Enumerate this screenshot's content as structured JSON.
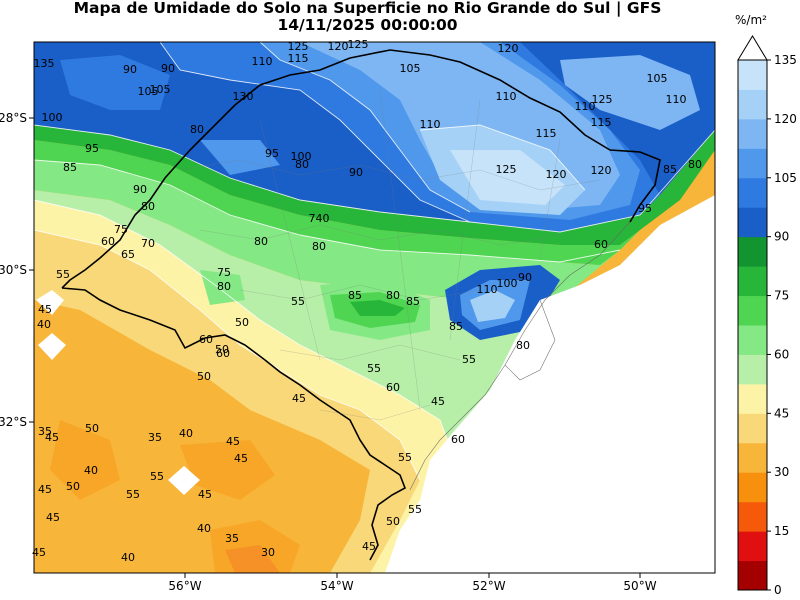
{
  "title": {
    "line1": "Mapa de Umidade do Solo na Superficie no Rio Grande do Sul | GFS",
    "line2": "14/11/2025 00:00:00"
  },
  "map": {
    "lon_ticks": [
      "56°W",
      "54°W",
      "52°W",
      "50°W"
    ],
    "lat_ticks": [
      "28°S",
      "30°S",
      "32°S"
    ]
  },
  "colorbar": {
    "unit": "%/m²",
    "tick_labels": [
      "0",
      "15",
      "30",
      "45",
      "60",
      "75",
      "90",
      "105",
      "120",
      "135"
    ],
    "levels": [
      {
        "color": "#a50000"
      },
      {
        "color": "#e01010"
      },
      {
        "color": "#f55a0a"
      },
      {
        "color": "#f7900c"
      },
      {
        "color": "#f7b53a"
      },
      {
        "color": "#f9d879"
      },
      {
        "color": "#fdf3a6"
      },
      {
        "color": "#b7efa8"
      },
      {
        "color": "#84e884"
      },
      {
        "color": "#4fd552"
      },
      {
        "color": "#27b63a"
      },
      {
        "color": "#129431"
      },
      {
        "color": "#1a5ec7"
      },
      {
        "color": "#2f7ae0"
      },
      {
        "color": "#4f98ec"
      },
      {
        "color": "#7db6f3"
      },
      {
        "color": "#a6d1f7"
      },
      {
        "color": "#c6e3f9"
      }
    ]
  },
  "contour_labels": [
    {
      "text": "125"
    },
    {
      "text": "120"
    },
    {
      "text": "125"
    },
    {
      "text": "120"
    },
    {
      "text": "110"
    },
    {
      "text": "115"
    },
    {
      "text": "105"
    },
    {
      "text": "110"
    },
    {
      "text": "115"
    },
    {
      "text": "125"
    },
    {
      "text": "120"
    },
    {
      "text": "120"
    },
    {
      "text": "125"
    },
    {
      "text": "115"
    },
    {
      "text": "110"
    },
    {
      "text": "105"
    },
    {
      "text": "110"
    },
    {
      "text": "130"
    },
    {
      "text": "135"
    },
    {
      "text": "90"
    },
    {
      "text": "90"
    },
    {
      "text": "105"
    },
    {
      "text": "100"
    },
    {
      "text": "95"
    },
    {
      "text": "85"
    },
    {
      "text": "90"
    },
    {
      "text": "80"
    },
    {
      "text": "80"
    },
    {
      "text": "95"
    },
    {
      "text": "100"
    },
    {
      "text": "90"
    },
    {
      "text": "80"
    },
    {
      "text": "75"
    },
    {
      "text": "70"
    },
    {
      "text": "60"
    },
    {
      "text": "65"
    },
    {
      "text": "80"
    },
    {
      "text": "740"
    },
    {
      "text": "80"
    },
    {
      "text": "75"
    },
    {
      "text": "80"
    },
    {
      "text": "55"
    },
    {
      "text": "85"
    },
    {
      "text": "80"
    },
    {
      "text": "85"
    },
    {
      "text": "110"
    },
    {
      "text": "100"
    },
    {
      "text": "90"
    },
    {
      "text": "85"
    },
    {
      "text": "80"
    },
    {
      "text": "60"
    },
    {
      "text": "55"
    },
    {
      "text": "60"
    },
    {
      "text": "55"
    },
    {
      "text": "50"
    },
    {
      "text": "60"
    },
    {
      "text": "50"
    },
    {
      "text": "60"
    },
    {
      "text": "55"
    },
    {
      "text": "45"
    },
    {
      "text": "55"
    },
    {
      "text": "60"
    },
    {
      "text": "55"
    },
    {
      "text": "40"
    },
    {
      "text": "35"
    },
    {
      "text": "45"
    },
    {
      "text": "45"
    },
    {
      "text": "50"
    },
    {
      "text": "35"
    },
    {
      "text": "40"
    },
    {
      "text": "50"
    },
    {
      "text": "40"
    },
    {
      "text": "45"
    },
    {
      "text": "45"
    },
    {
      "text": "40"
    },
    {
      "text": "45"
    },
    {
      "text": "55"
    },
    {
      "text": "45"
    },
    {
      "text": "45"
    },
    {
      "text": "45"
    },
    {
      "text": "40"
    },
    {
      "text": "35"
    },
    {
      "text": "30"
    },
    {
      "text": "45"
    },
    {
      "text": "50"
    },
    {
      "text": "50"
    },
    {
      "text": "55"
    },
    {
      "text": "45"
    },
    {
      "text": "105"
    },
    {
      "text": "110"
    },
    {
      "text": "85"
    },
    {
      "text": "95"
    },
    {
      "text": "80"
    }
  ]
}
